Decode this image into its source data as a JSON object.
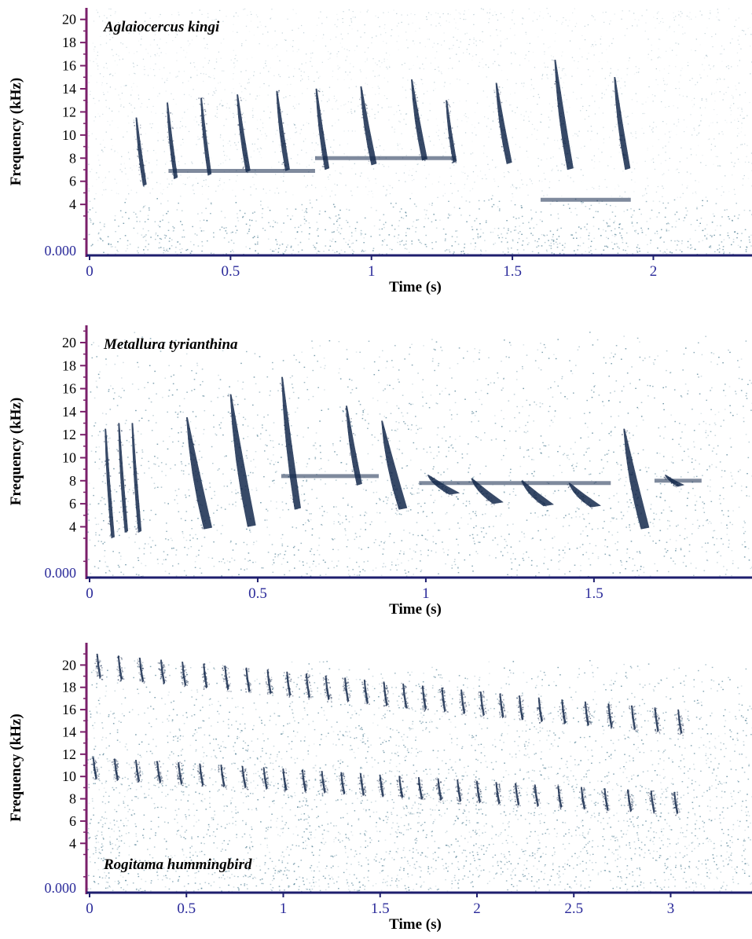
{
  "colors": {
    "background": "#ffffff",
    "noise": "#3a6f86",
    "call": "#152a4d",
    "x_tick_labels": "#2a2a9a",
    "axis_spine": "#7a1f6a",
    "baseline": "#1e1e6e",
    "text": "#000000"
  },
  "chart_data": [
    {
      "type": "heatmap",
      "species": "Aglaiocercus kingi",
      "ylabel": "Frequency (kHz)",
      "xlabel": "Time (s)",
      "y_ticks": [
        4,
        6,
        8,
        10,
        12,
        14,
        16,
        18,
        20
      ],
      "y_zero_label": "0.000",
      "x_ticks": [
        "0",
        "0.5",
        "1",
        "1.5",
        "2"
      ],
      "x_tick_values": [
        0,
        0.5,
        1,
        1.5,
        2
      ],
      "xlim": [
        0,
        2.35
      ],
      "ylim": [
        0,
        21
      ],
      "noise_ceiling_khz": 4.6,
      "noise_density": 0.9,
      "notes": [
        {
          "t": 0.17,
          "f_high": 11.5,
          "f_low": 5.6,
          "w": 0.02
        },
        {
          "t": 0.28,
          "f_high": 12.8,
          "f_low": 6.2,
          "w": 0.02
        },
        {
          "t": 0.4,
          "f_high": 13.2,
          "f_low": 6.5,
          "w": 0.02
        },
        {
          "t": 0.53,
          "f_high": 13.5,
          "f_low": 6.8,
          "w": 0.025
        },
        {
          "t": 0.67,
          "f_high": 13.8,
          "f_low": 6.9,
          "w": 0.025
        },
        {
          "t": 0.81,
          "f_high": 14.0,
          "f_low": 7.0,
          "w": 0.025
        },
        {
          "t": 0.97,
          "f_high": 14.2,
          "f_low": 7.4,
          "w": 0.03
        },
        {
          "t": 1.15,
          "f_high": 14.8,
          "f_low": 7.8,
          "w": 0.03
        },
        {
          "t": 1.27,
          "f_high": 13.0,
          "f_low": 7.6,
          "w": 0.02
        },
        {
          "t": 1.45,
          "f_high": 14.5,
          "f_low": 7.5,
          "w": 0.03
        },
        {
          "t": 1.66,
          "f_high": 16.5,
          "f_low": 7.0,
          "w": 0.035
        },
        {
          "t": 1.87,
          "f_high": 15.0,
          "f_low": 7.0,
          "w": 0.03
        }
      ],
      "bands": [
        {
          "t0": 0.28,
          "t1": 0.8,
          "f": 6.9
        },
        {
          "t0": 0.8,
          "t1": 1.3,
          "f": 8.0
        },
        {
          "t0": 1.6,
          "t1": 1.92,
          "f": 4.4
        }
      ]
    },
    {
      "type": "heatmap",
      "species": "Metallura tyrianthina",
      "ylabel": "Frequency (kHz)",
      "xlabel": "Time (s)",
      "y_ticks": [
        4,
        6,
        8,
        10,
        12,
        14,
        16,
        18,
        20
      ],
      "y_zero_label": "0.000",
      "x_ticks": [
        "0",
        "0.5",
        "1",
        "1.5"
      ],
      "x_tick_values": [
        0,
        0.5,
        1,
        1.5
      ],
      "xlim": [
        0,
        1.97
      ],
      "ylim": [
        0,
        21.5
      ],
      "noise_ceiling_khz": 21,
      "noise_density": 0.45,
      "notes": [
        {
          "t": 0.05,
          "f_high": 12.5,
          "f_low": 3.0,
          "w": 0.015
        },
        {
          "t": 0.09,
          "f_high": 13.0,
          "f_low": 3.5,
          "w": 0.015
        },
        {
          "t": 0.13,
          "f_high": 13.0,
          "f_low": 3.5,
          "w": 0.015
        },
        {
          "t": 0.3,
          "f_high": 13.5,
          "f_low": 3.8,
          "w": 0.04
        },
        {
          "t": 0.43,
          "f_high": 15.5,
          "f_low": 4.0,
          "w": 0.04
        },
        {
          "t": 0.58,
          "f_high": 17.0,
          "f_low": 5.5,
          "w": 0.03
        },
        {
          "t": 0.77,
          "f_high": 14.5,
          "f_low": 7.6,
          "w": 0.025
        },
        {
          "t": 0.88,
          "f_high": 13.2,
          "f_low": 5.5,
          "w": 0.04
        },
        {
          "t": 1.02,
          "f_high": 8.5,
          "f_low": 6.8,
          "w": 0.05
        },
        {
          "t": 1.15,
          "f_high": 8.2,
          "f_low": 6.0,
          "w": 0.05
        },
        {
          "t": 1.3,
          "f_high": 8.0,
          "f_low": 5.8,
          "w": 0.05
        },
        {
          "t": 1.44,
          "f_high": 7.8,
          "f_low": 5.7,
          "w": 0.05
        },
        {
          "t": 1.6,
          "f_high": 12.5,
          "f_low": 3.8,
          "w": 0.04
        },
        {
          "t": 1.72,
          "f_high": 8.5,
          "f_low": 7.5,
          "w": 0.03
        }
      ],
      "bands": [
        {
          "t0": 0.57,
          "t1": 0.86,
          "f": 8.4
        },
        {
          "t0": 0.98,
          "t1": 1.55,
          "f": 7.8
        },
        {
          "t0": 1.68,
          "t1": 1.82,
          "f": 8.0
        }
      ]
    },
    {
      "type": "heatmap",
      "species": "Rogitama hummingbird",
      "ylabel": "Frequency (kHz)",
      "xlabel": "Time (s)",
      "y_ticks": [
        4,
        6,
        8,
        10,
        12,
        14,
        16,
        18,
        20
      ],
      "y_zero_label": "0.000",
      "x_ticks": [
        "0",
        "0.5",
        "1",
        "1.5",
        "2",
        "2.5",
        "3"
      ],
      "x_tick_values": [
        0,
        0.5,
        1,
        1.5,
        2,
        2.5,
        3
      ],
      "xlim": [
        0,
        3.42
      ],
      "ylim": [
        0,
        22
      ],
      "noise_ceiling_khz": 20.5,
      "noise_density": 0.8,
      "syllable_times": [
        0.02,
        0.13,
        0.24,
        0.35,
        0.46,
        0.57,
        0.68,
        0.79,
        0.9,
        1.0,
        1.1,
        1.2,
        1.3,
        1.4,
        1.5,
        1.6,
        1.7,
        1.8,
        1.9,
        2.0,
        2.1,
        2.2,
        2.3,
        2.42,
        2.54,
        2.66,
        2.78,
        2.9,
        3.02
      ],
      "low_note_start_khz": 10.5,
      "low_note_end_khz": 7.4,
      "high_note_start_khz": 20.0,
      "high_note_end_khz": 15.0
    }
  ]
}
